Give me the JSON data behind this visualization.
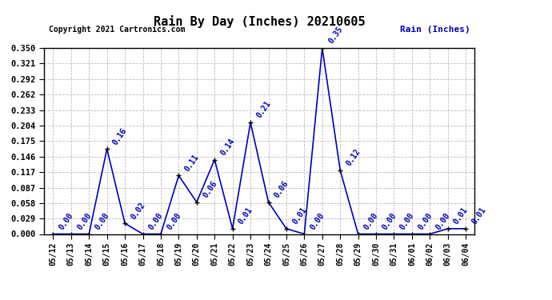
{
  "title": "Rain By Day (Inches) 20210605",
  "copyright_text": "Copyright 2021 Cartronics.com",
  "legend_label": "Rain (Inches)",
  "dates": [
    "05/12",
    "05/13",
    "05/14",
    "05/15",
    "05/16",
    "05/17",
    "05/18",
    "05/19",
    "05/20",
    "05/21",
    "05/22",
    "05/23",
    "05/24",
    "05/25",
    "05/26",
    "05/27",
    "05/28",
    "05/29",
    "05/30",
    "05/31",
    "06/01",
    "06/02",
    "06/03",
    "06/04"
  ],
  "values": [
    0.0,
    0.0,
    0.0,
    0.16,
    0.02,
    0.0,
    0.0,
    0.11,
    0.06,
    0.14,
    0.01,
    0.21,
    0.06,
    0.01,
    0.0,
    0.35,
    0.12,
    0.0,
    0.0,
    0.0,
    0.0,
    0.0,
    0.01,
    0.01
  ],
  "line_color": "#0000bb",
  "marker_color": "#000000",
  "label_color": "#0000bb",
  "title_color": "#000000",
  "copyright_color": "#000000",
  "background_color": "#ffffff",
  "grid_color": "#bbbbbb",
  "ylim": [
    0.0,
    0.35
  ],
  "yticks": [
    0.0,
    0.029,
    0.058,
    0.087,
    0.117,
    0.146,
    0.175,
    0.204,
    0.233,
    0.262,
    0.292,
    0.321,
    0.35
  ]
}
